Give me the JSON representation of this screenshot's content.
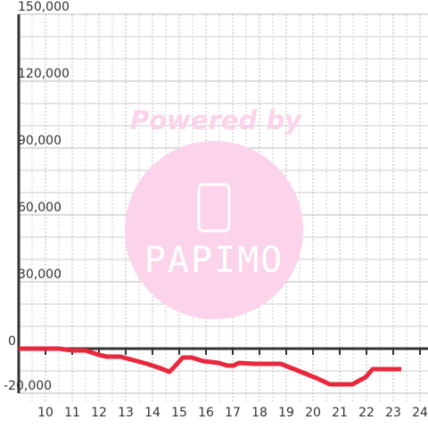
{
  "chart_data": {
    "type": "line",
    "watermark": {
      "top": "Powered by",
      "logo": "PAPIMO"
    },
    "x": [
      9,
      10.5,
      11,
      11.5,
      12,
      12.3,
      12.8,
      13.3,
      13.8,
      14.3,
      14.63,
      14.8,
      15.13,
      15.47,
      15.9,
      16.47,
      16.8,
      17.03,
      17.23,
      17.8,
      18.8,
      19.13,
      19.63,
      20.13,
      20.63,
      21.47,
      21.97,
      22.23,
      23.3
    ],
    "series": [
      {
        "color": "#e8283c",
        "values": [
          0,
          0,
          -800,
          -800,
          -2800,
          -3600,
          -3600,
          -5200,
          -6800,
          -8800,
          -10400,
          -8400,
          -4000,
          -4000,
          -5600,
          -6400,
          -7600,
          -7600,
          -6400,
          -6800,
          -6800,
          -8400,
          -10800,
          -13200,
          -16000,
          -16000,
          -12800,
          -9200,
          -9200
        ]
      }
    ],
    "xlim": [
      9,
      24.3
    ],
    "ylim": [
      -20000,
      150000
    ],
    "xticks": [
      10,
      11,
      12,
      13,
      14,
      15,
      16,
      17,
      18,
      19,
      20,
      21,
      22,
      23,
      24
    ],
    "yticks": [
      {
        "value": 150000,
        "label": "150,000"
      },
      {
        "value": 120000,
        "label": "120,000"
      },
      {
        "value": 90000,
        "label": "90,000"
      },
      {
        "value": 60000,
        "label": "60,000"
      },
      {
        "value": 30000,
        "label": "30,000"
      },
      0,
      {
        "value": -20000,
        "label": "-20,000"
      }
    ],
    "minor_yticks": [
      -10000,
      10000,
      20000,
      40000,
      50000,
      70000,
      80000,
      100000,
      110000,
      130000,
      140000
    ],
    "minor_xticks": [
      9.5,
      10.5,
      11.5,
      12.5,
      13.5,
      14.5,
      15.5,
      16.5,
      17.5,
      18.5,
      19.5,
      20.5,
      21.5,
      22.5,
      23.5
    ],
    "grid": true
  }
}
